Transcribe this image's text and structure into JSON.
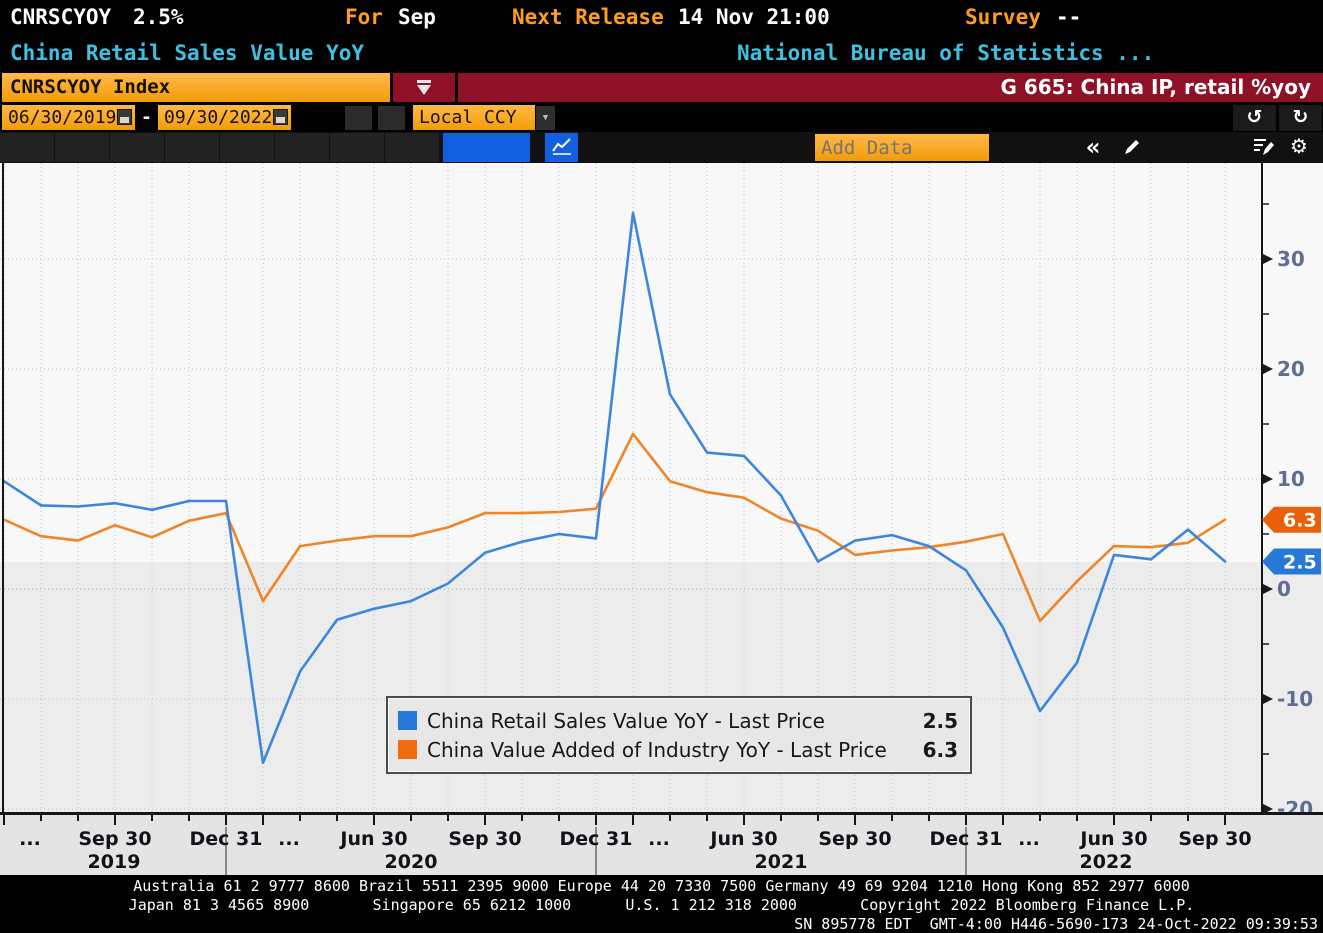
{
  "header": {
    "ticker": "CNRSCYOY",
    "last_value": "2.5%",
    "period_label": "For",
    "period_value": "Sep",
    "next_release_label": "Next Release",
    "next_release_value": "14 Nov 21:00",
    "survey_label": "Survey",
    "survey_value": "--",
    "security_name": "China Retail Sales Value YoY",
    "source_name": "National Bureau of Statistics ...",
    "security_field": "CNRSCYOY Index",
    "chart_id_title": "G 665: China IP, retail %yoy"
  },
  "toolbar": {
    "date_from": "06/30/2019",
    "date_range_dash": "-",
    "date_to": "09/30/2022",
    "currency": "Local CCY",
    "add_data_placeholder": "Add Data",
    "collapse_label": "«",
    "undo_icon": "↺",
    "redo_icon": "↻",
    "gear_icon": "⚙",
    "ccy_dropdown_icon": "▼"
  },
  "colors": {
    "amber": "#F9A51A",
    "banner_red": "#8E1127",
    "cyan_text": "#3EC1E0",
    "orange_text": "#FF9E1B",
    "selected_tab_blue": "#1160DF",
    "axis_label": "#5D6E92"
  },
  "legend": {
    "rows": [
      {
        "label": "China Retail Sales Value YoY - Last Price",
        "value": "2.5",
        "color": "#2779D8"
      },
      {
        "label": "China Value Added of Industry YoY - Last Price",
        "value": "6.3",
        "color": "#F26B11"
      }
    ]
  },
  "chart_data": {
    "type": "line",
    "title": "G 665: China IP, retail %yoy",
    "ylim": [
      -20.3,
      38.7
    ],
    "grid": "dotted",
    "legend_position": "bottom-center",
    "x_labels": [
      "Jun 2019",
      "Jul 2019",
      "Aug 2019",
      "Sep 2019",
      "Oct 2019",
      "Nov 2019",
      "Dec 2019",
      "Mar 2020",
      "Apr 2020",
      "May 2020",
      "Jun 2020",
      "Jul 2020",
      "Aug 2020",
      "Sep 2020",
      "Oct 2020",
      "Nov 2020",
      "Dec 2020",
      "Mar 2021",
      "Apr 2021",
      "May 2021",
      "Jun 2021",
      "Jul 2021",
      "Aug 2021",
      "Sep 2021",
      "Oct 2021",
      "Nov 2021",
      "Dec 2021",
      "Mar 2022",
      "Apr 2022",
      "May 2022",
      "Jun 2022",
      "Jul 2022",
      "Aug 2022",
      "Sep 2022"
    ],
    "series": [
      {
        "name": "China Retail Sales Value YoY",
        "legend": "China Retail Sales Value YoY - Last Price",
        "color": "#3E86DB",
        "tag_color": "#2779D8",
        "last": 2.5,
        "values": [
          9.8,
          7.6,
          7.5,
          7.8,
          7.2,
          8.0,
          8.0,
          -15.8,
          -7.5,
          -2.8,
          -1.8,
          -1.1,
          0.5,
          3.3,
          4.3,
          5.0,
          4.6,
          34.2,
          17.7,
          12.4,
          12.1,
          8.5,
          2.5,
          4.4,
          4.9,
          3.9,
          1.7,
          -3.5,
          -11.1,
          -6.7,
          3.1,
          2.7,
          5.4,
          2.5
        ]
      },
      {
        "name": "China Value Added of Industry YoY",
        "legend": "China Value Added of Industry YoY - Last Price",
        "color": "#F08428",
        "tag_color": "#E8610A",
        "last": 6.3,
        "values": [
          6.3,
          4.8,
          4.4,
          5.8,
          4.7,
          6.2,
          6.9,
          -1.1,
          3.9,
          4.4,
          4.8,
          4.8,
          5.6,
          6.9,
          6.9,
          7.0,
          7.3,
          14.1,
          9.8,
          8.8,
          8.3,
          6.4,
          5.3,
          3.1,
          3.5,
          3.8,
          4.3,
          5.0,
          -2.9,
          0.7,
          3.9,
          3.8,
          4.2,
          6.3
        ]
      }
    ],
    "y_axis": {
      "major_ticks": [
        30,
        20,
        10,
        0,
        -10,
        -20
      ],
      "minor_ticks": [
        35,
        25,
        15,
        5,
        -5,
        -15
      ],
      "label_color": "#5D6E92"
    },
    "x_axis": {
      "ticks": [
        {
          "index": 0,
          "label": "..."
        },
        {
          "index": 3,
          "label": "Sep 30"
        },
        {
          "index": 6,
          "label": "Dec 31"
        },
        {
          "index": 7,
          "label": "..."
        },
        {
          "index": 10,
          "label": "Jun 30"
        },
        {
          "index": 13,
          "label": "Sep 30"
        },
        {
          "index": 16,
          "label": "Dec 31"
        },
        {
          "index": 17,
          "label": "..."
        },
        {
          "index": 20,
          "label": "Jun 30"
        },
        {
          "index": 23,
          "label": "Sep 30"
        },
        {
          "index": 26,
          "label": "Dec 31"
        },
        {
          "index": 27,
          "label": "..."
        },
        {
          "index": 30,
          "label": "Jun 30"
        },
        {
          "index": 33,
          "label": "Sep 30"
        }
      ],
      "year_separators": [
        6,
        16,
        26
      ],
      "year_labels": [
        "2019",
        "2020",
        "2021",
        "2022"
      ]
    },
    "background_bands": {
      "upper": "#F8F8F8",
      "lower": "#ECECEC",
      "split_at_value": 2.5
    }
  },
  "footer": {
    "line1": "Australia 61 2 9777 8600 Brazil 5511 2395 9000 Europe 44 20 7330 7500 Germany 49 69 9204 1210 Hong Kong 852 2977 6000",
    "line2": "Japan 81 3 4565 8900       Singapore 65 6212 1000      U.S. 1 212 318 2000       Copyright 2022 Bloomberg Finance L.P.",
    "line3": "SN 895778 EDT  GMT-4:00 H446-5690-173 24-Oct-2022 09:39:53"
  }
}
